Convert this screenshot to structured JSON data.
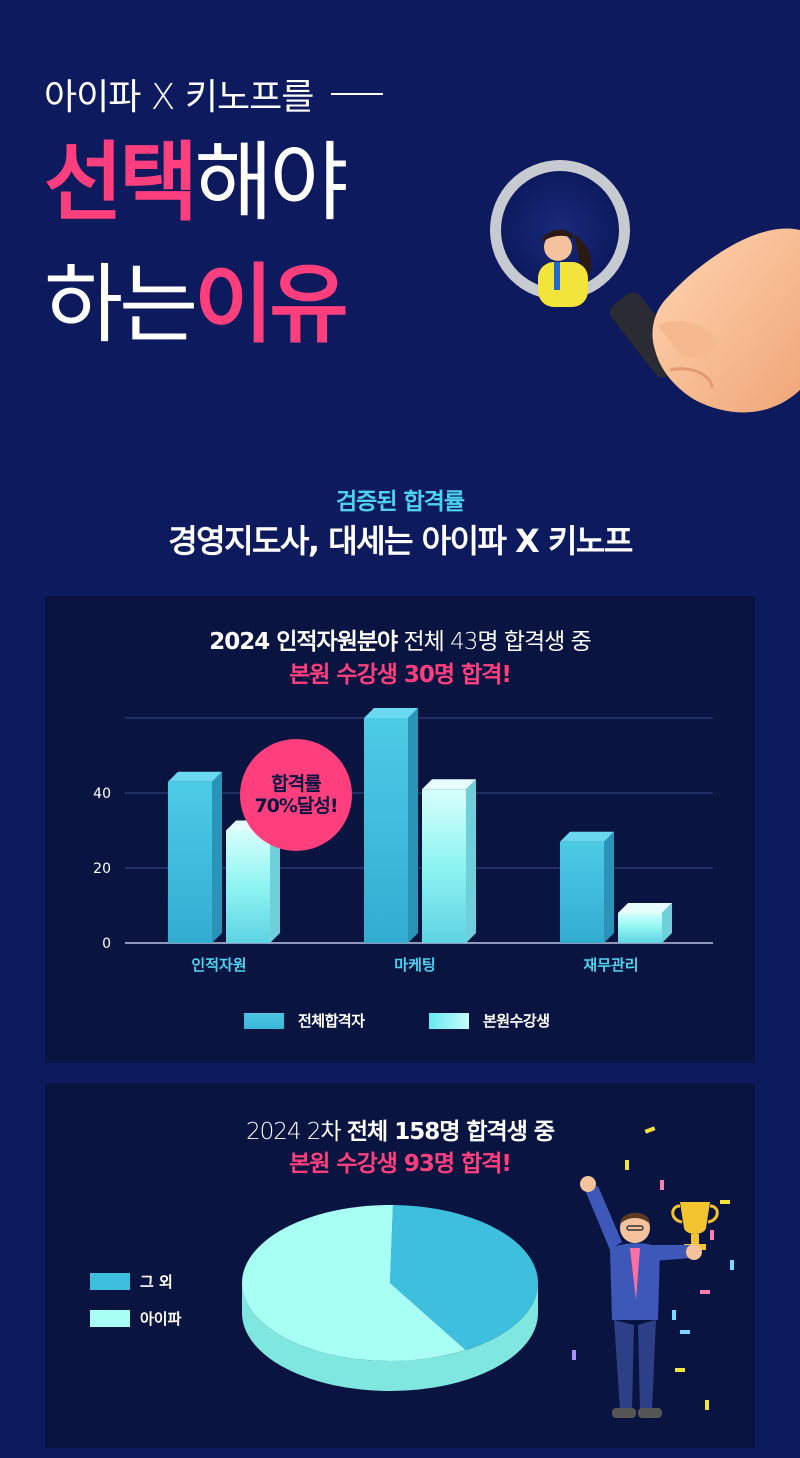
{
  "hero": {
    "subtitle": "아이파 X 키노프를",
    "line1_accent": "선택",
    "line1_rest": "해야",
    "line2_rest": "하는",
    "line2_accent": "이유"
  },
  "section": {
    "kicker": "검증된 합격률",
    "title": "경영지도사, 대세는 아이파 X 키노프"
  },
  "card1": {
    "title_bold": "2024 인적자원분야",
    "title_rest": " 전체 43명 합격생 중",
    "title_highlight": "본원 수강생 30명 합격!",
    "badge_line1": "합격률",
    "badge_line2": "70%달성!"
  },
  "card2": {
    "title_rest": "2024 2차 ",
    "title_bold": "전체 158명 합격생 중",
    "title_highlight": "본원 수강생 93명 합격!"
  },
  "chart_data": [
    {
      "type": "bar",
      "categories": [
        "인적자원",
        "마케팅",
        "재무관리"
      ],
      "series": [
        {
          "name": "전체합격자",
          "values": [
            43,
            60,
            27
          ]
        },
        {
          "name": "본원수강생",
          "values": [
            30,
            41,
            8
          ]
        }
      ],
      "yticks": [
        "0",
        "20",
        "40"
      ],
      "ylim": [
        0,
        60
      ],
      "grid": true,
      "legend_position": "bottom",
      "colors": [
        "#3fc1e0",
        "#9ef7f4"
      ]
    },
    {
      "type": "pie",
      "labels": [
        "그 외",
        "아이파"
      ],
      "values": [
        65,
        93
      ],
      "colors": [
        "#3fbfde",
        "#a8fff4"
      ],
      "legend_position": "left"
    }
  ],
  "colors": {
    "background": "#0d1a5e",
    "card": "#0a1440",
    "accent_pink": "#ff3f7d",
    "accent_cyan": "#4fd2ee"
  }
}
